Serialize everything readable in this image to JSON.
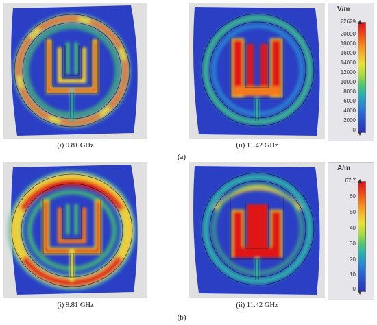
{
  "section_a": {
    "label": "(a)",
    "panels": [
      {
        "caption": "(i) 9.81 GHz"
      },
      {
        "caption": "(ii) 11.42 GHz"
      }
    ],
    "legend": {
      "unit": "V/m",
      "ticks": [
        "22629",
        "20000",
        "18000",
        "16000",
        "14000",
        "12000",
        "10000",
        "8000",
        "6000",
        "4000",
        "2000",
        "0"
      ]
    }
  },
  "section_b": {
    "label": "(b)",
    "panels": [
      {
        "caption": "(i) 9.81 GHz"
      },
      {
        "caption": "(ii) 11.42 GHz"
      }
    ],
    "legend": {
      "unit": "A/m",
      "ticks": [
        "67.7",
        "60",
        "50",
        "40",
        "30",
        "20",
        "10",
        "0"
      ]
    }
  },
  "colors": {
    "background_field": "#2a3fc4",
    "hot": "#e01818",
    "warm": "#f0d030",
    "mid": "#45c070",
    "cool": "#2aa8d8"
  }
}
